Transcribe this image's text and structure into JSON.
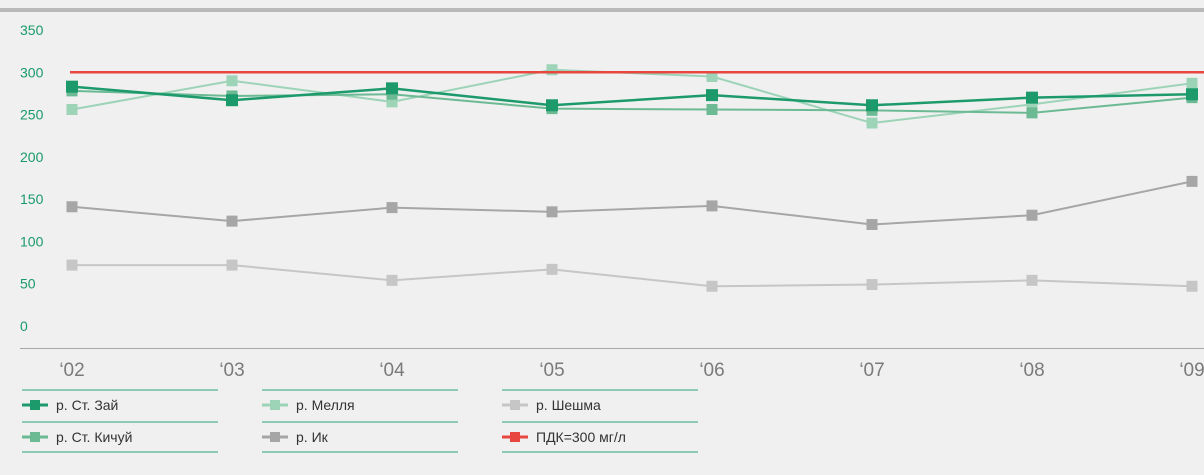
{
  "chart_data": {
    "type": "line",
    "title": "",
    "xlabel": "",
    "ylabel": "",
    "categories": [
      "‘02",
      "‘03",
      "‘04",
      "‘05",
      "‘06",
      "‘07",
      "‘08",
      "‘09"
    ],
    "ylim": [
      0,
      350
    ],
    "yticks": [
      "0",
      "50",
      "100",
      "150",
      "200",
      "250",
      "300",
      "350"
    ],
    "grid": false,
    "legend_position": "bottom",
    "series": [
      {
        "name": "р. Ст. Зай",
        "color": "#1d9a6c",
        "marker": "square",
        "values": [
          283,
          267,
          281,
          261,
          273,
          261,
          270,
          274
        ]
      },
      {
        "name": "р. Мелля",
        "color": "#9dd4b8",
        "marker": "square",
        "values": [
          256,
          290,
          265,
          303,
          295,
          240,
          262,
          287
        ]
      },
      {
        "name": "р. Шешма",
        "color": "#c6c6c6",
        "marker": "square",
        "values": [
          72,
          72,
          54,
          67,
          47,
          49,
          54,
          47
        ]
      },
      {
        "name": "р. Ст. Кичуй",
        "color": "#6cba94",
        "marker": "square",
        "values": [
          278,
          272,
          274,
          257,
          256,
          255,
          252,
          270
        ]
      },
      {
        "name": "р. Ик",
        "color": "#a6a6a6",
        "marker": "square",
        "values": [
          141,
          124,
          140,
          135,
          142,
          120,
          131,
          171
        ]
      },
      {
        "name": "ПДК=300 мг/л",
        "color": "#e8473f",
        "marker": "square",
        "values": [
          300,
          300,
          300,
          300,
          300,
          300,
          300,
          300
        ]
      }
    ]
  }
}
